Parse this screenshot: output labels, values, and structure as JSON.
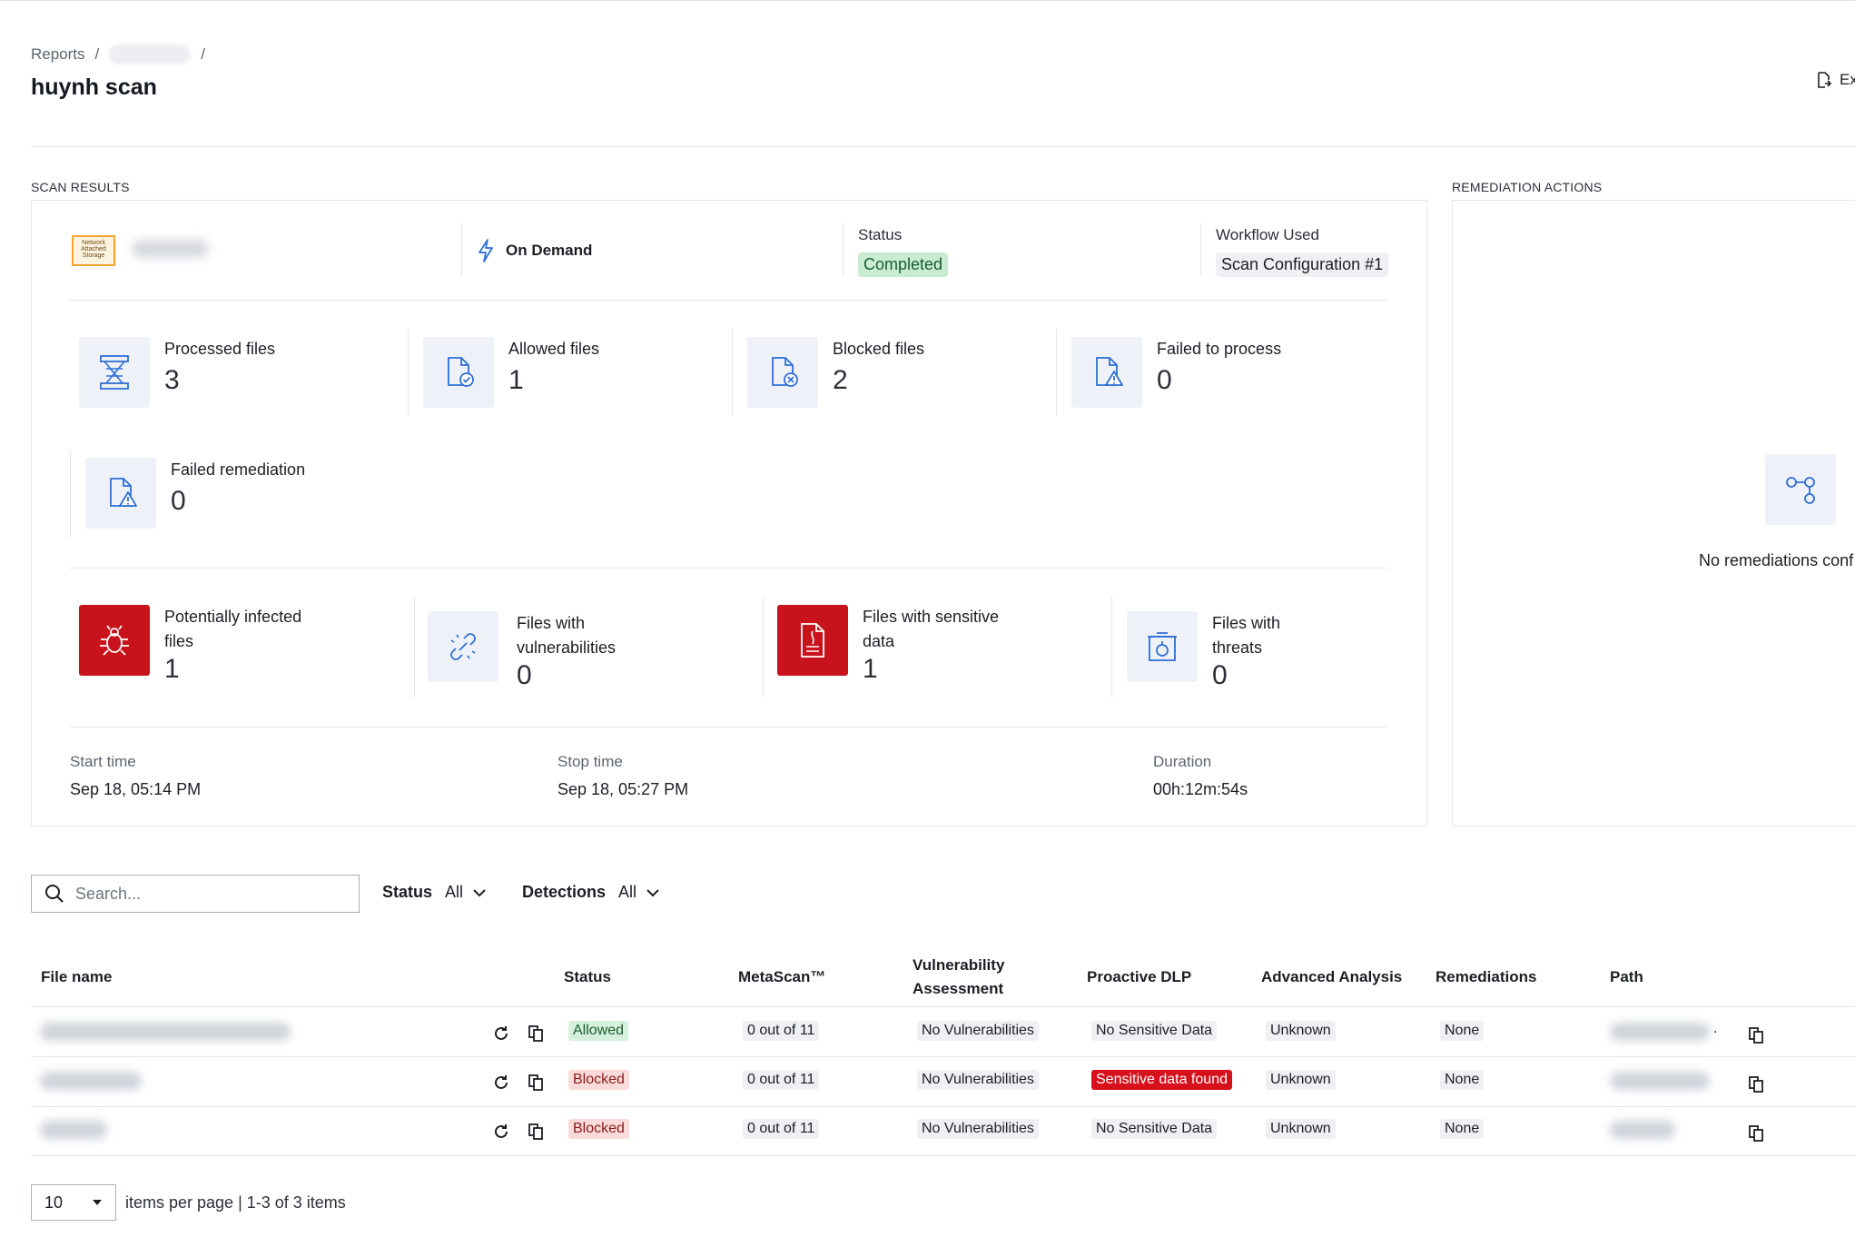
{
  "breadcrumb": {
    "root": "Reports",
    "sep": "/"
  },
  "page_title": "huynh scan",
  "export_label": "Ex",
  "scan_results": {
    "section_label": "SCAN RESULTS",
    "source_logo_text": "Network Attached Storage",
    "mode": "On Demand",
    "status_label": "Status",
    "status_value": "Completed",
    "workflow_label": "Workflow Used",
    "workflow_value": "Scan Configuration #1",
    "stats": [
      {
        "label": "Processed files",
        "value": "3",
        "icon": "processed-files-icon"
      },
      {
        "label": "Allowed files",
        "value": "1",
        "icon": "allowed-files-icon"
      },
      {
        "label": "Blocked files",
        "value": "2",
        "icon": "blocked-files-icon"
      },
      {
        "label": "Failed to process",
        "value": "0",
        "icon": "failed-process-icon"
      },
      {
        "label": "Failed remediation",
        "value": "0",
        "icon": "failed-remediation-icon"
      }
    ],
    "detections": [
      {
        "label_line1": "Potentially infected",
        "label_line2": "files",
        "value": "1",
        "icon": "bug-icon"
      },
      {
        "label_line1": "Files with",
        "label_line2": "vulnerabilities",
        "value": "0",
        "icon": "broken-link-icon"
      },
      {
        "label_line1": "Files with sensitive",
        "label_line2": "data",
        "value": "1",
        "icon": "sensitive-doc-icon"
      },
      {
        "label_line1": "Files with",
        "label_line2": "threats",
        "value": "0",
        "icon": "threat-box-icon"
      }
    ],
    "start_label": "Start time",
    "start_value": "Sep 18, 05:14 PM",
    "stop_label": "Stop time",
    "stop_value": "Sep 18, 05:27 PM",
    "duration_label": "Duration",
    "duration_value": "00h:12m:54s"
  },
  "remediation": {
    "section_label": "REMEDIATION ACTIONS",
    "empty_text": "No remediations conf"
  },
  "filters": {
    "search_placeholder": "Search...",
    "status_label": "Status",
    "status_value": "All",
    "detections_label": "Detections",
    "detections_value": "All"
  },
  "table": {
    "headers": {
      "file_name": "File name",
      "status": "Status",
      "metascan": "MetaScan™",
      "vuln_line1": "Vulnerability",
      "vuln_line2": "Assessment",
      "dlp": "Proactive DLP",
      "advanced": "Advanced Analysis",
      "remediations": "Remediations",
      "path": "Path"
    },
    "rows": [
      {
        "status": "Allowed",
        "metascan": "0 out of 11",
        "vuln": "No Vulnerabilities",
        "dlp": "No Sensitive Data",
        "advanced": "Unknown",
        "remediations": "None",
        "path_suffix": "."
      },
      {
        "status": "Blocked",
        "metascan": "0 out of 11",
        "vuln": "No Vulnerabilities",
        "dlp": "Sensitive data found",
        "advanced": "Unknown",
        "remediations": "None",
        "path_suffix": ""
      },
      {
        "status": "Blocked",
        "metascan": "0 out of 11",
        "vuln": "No Vulnerabilities",
        "dlp": "No Sensitive Data",
        "advanced": "Unknown",
        "remediations": "None",
        "path_suffix": ""
      }
    ]
  },
  "pagination": {
    "page_size": "10",
    "summary": "items per page | 1-3 of 3 items"
  },
  "colors": {
    "accent_blue": "#2f6fd6",
    "danger_red": "#c8121c",
    "success_green": "#c8ecd2"
  }
}
